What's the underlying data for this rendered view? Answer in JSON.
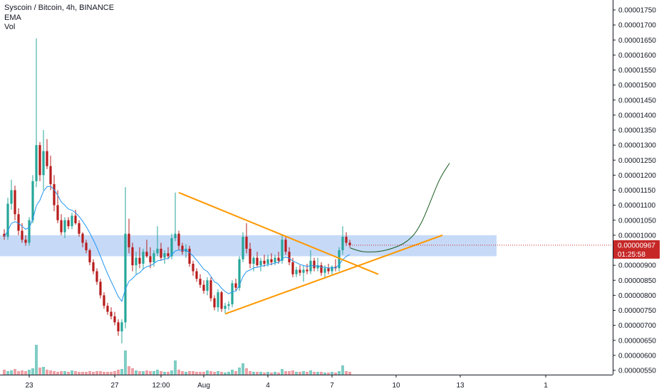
{
  "header": {
    "symbol_line": "Syscoin / Bitcoin, 4h, BINANCE",
    "indicator_1": "EMA",
    "indicator_2": "Vol"
  },
  "colors": {
    "up": "#26a69a",
    "down": "#b71c1c",
    "vol_up": "#7fcdc4",
    "vol_down": "#eda0a6",
    "ema": "#2196f3",
    "trendline": "#ff9800",
    "zone": "#b3cdf5",
    "projection": "#1b5e20",
    "price_label_bg": "#c62828"
  },
  "chart_data": {
    "type": "candlestick",
    "y_axis": {
      "ticks": [
        "0.00000550",
        "0.00000600",
        "0.00000650",
        "0.00000700",
        "0.00000750",
        "0.00000800",
        "0.00000850",
        "0.00000900",
        "0.00000950",
        "0.00001000",
        "0.00001050",
        "0.00001100",
        "0.00001150",
        "0.00001200",
        "0.00001250",
        "0.00001300",
        "0.00001350",
        "0.00001400",
        "0.00001450",
        "0.00001500",
        "0.00001550",
        "0.00001600",
        "0.00001650",
        "0.00001700",
        "0.00001750"
      ],
      "range": [
        5.2e-06,
        1.78e-05
      ]
    },
    "x_axis": {
      "ticks": [
        {
          "label": "23",
          "bar": 7
        },
        {
          "label": "27",
          "bar": 31
        },
        {
          "label": "12:00",
          "bar": 44
        },
        {
          "label": "Aug",
          "bar": 56
        },
        {
          "label": "4",
          "bar": 74
        },
        {
          "label": "7",
          "bar": 92
        },
        {
          "label": "10",
          "bar": 110
        },
        {
          "label": "13",
          "bar": 128
        },
        {
          "label": "1",
          "bar": 152
        }
      ]
    },
    "current_price": "0.00000967",
    "countdown": "01:25:58",
    "zone": {
      "low": 9.3e-06,
      "high": 1e-05
    },
    "trendlines": [
      {
        "name": "upper",
        "from": [
          49,
          1.142e-05
        ],
        "to": [
          105,
          8.7e-06
        ]
      },
      {
        "name": "lower",
        "from": [
          62,
          7.38e-06
        ],
        "to": [
          123,
          1e-05
        ]
      }
    ],
    "projection": [
      [
        97,
        9.58e-06
      ],
      [
        101,
        9.45e-06
      ],
      [
        107,
        9.5e-06
      ],
      [
        113,
        9.8e-06
      ],
      [
        117,
        1.04e-05
      ],
      [
        122,
        1.18e-05
      ],
      [
        125,
        1.24e-05
      ]
    ],
    "candles": [
      [
        1.005,
        1.02,
        0.985,
        0.995
      ],
      [
        0.995,
        1.125,
        0.985,
        1.105
      ],
      [
        1.105,
        1.185,
        1.085,
        1.15
      ],
      [
        1.15,
        1.165,
        1.05,
        1.07
      ],
      [
        1.07,
        1.09,
        1.0,
        1.015
      ],
      [
        1.015,
        1.04,
        0.975,
        0.985
      ],
      [
        0.985,
        1.0,
        0.965,
        0.975
      ],
      [
        0.975,
        1.06,
        0.965,
        1.05
      ],
      [
        1.05,
        1.2,
        1.04,
        1.18
      ],
      [
        1.18,
        1.655,
        1.16,
        1.3
      ],
      [
        1.3,
        1.31,
        1.18,
        1.2
      ],
      [
        1.2,
        1.35,
        1.15,
        1.28
      ],
      [
        1.28,
        1.32,
        1.22,
        1.23
      ],
      [
        1.23,
        1.265,
        1.15,
        1.17
      ],
      [
        1.17,
        1.2,
        1.08,
        1.1
      ],
      [
        1.1,
        1.15,
        1.04,
        1.05
      ],
      [
        1.05,
        1.07,
        1.0,
        1.01
      ],
      [
        1.01,
        1.06,
        0.99,
        1.05
      ],
      [
        1.05,
        1.06,
        1.02,
        1.03
      ],
      [
        1.03,
        1.075,
        1.02,
        1.065
      ],
      [
        1.065,
        1.085,
        1.035,
        1.04
      ],
      [
        1.04,
        1.05,
        0.995,
        1.005
      ],
      [
        1.005,
        1.01,
        0.96,
        0.975
      ],
      [
        0.975,
        0.985,
        0.94,
        0.95
      ],
      [
        0.95,
        0.955,
        0.9,
        0.91
      ],
      [
        0.91,
        0.92,
        0.87,
        0.88
      ],
      [
        0.88,
        0.89,
        0.835,
        0.845
      ],
      [
        0.845,
        0.855,
        0.79,
        0.8
      ],
      [
        0.8,
        0.81,
        0.755,
        0.765
      ],
      [
        0.765,
        0.775,
        0.735,
        0.745
      ],
      [
        0.745,
        0.76,
        0.72,
        0.73
      ],
      [
        0.73,
        0.745,
        0.7,
        0.71
      ],
      [
        0.71,
        0.72,
        0.665,
        0.68
      ],
      [
        0.68,
        0.72,
        0.64,
        0.71
      ],
      [
        0.71,
        1.16,
        0.69,
        1.005
      ],
      [
        1.005,
        1.055,
        0.94,
        0.96
      ],
      [
        0.96,
        0.975,
        0.88,
        0.9
      ],
      [
        0.9,
        0.945,
        0.87,
        0.925
      ],
      [
        0.925,
        0.96,
        0.89,
        0.905
      ],
      [
        0.905,
        0.955,
        0.885,
        0.945
      ],
      [
        0.945,
        0.985,
        0.925,
        0.93
      ],
      [
        0.93,
        0.96,
        0.89,
        0.91
      ],
      [
        0.91,
        0.95,
        0.895,
        0.94
      ],
      [
        0.94,
        1.03,
        0.93,
        0.955
      ],
      [
        0.955,
        0.975,
        0.915,
        0.925
      ],
      [
        0.925,
        0.95,
        0.905,
        0.94
      ],
      [
        0.94,
        0.96,
        0.92,
        0.93
      ],
      [
        0.93,
        1.005,
        0.92,
        0.99
      ],
      [
        0.99,
        1.142,
        0.98,
        1.005
      ],
      [
        1.005,
        1.015,
        0.95,
        0.965
      ],
      [
        0.965,
        0.975,
        0.935,
        0.945
      ],
      [
        0.945,
        0.97,
        0.925,
        0.955
      ],
      [
        0.955,
        0.965,
        0.895,
        0.905
      ],
      [
        0.905,
        0.915,
        0.865,
        0.88
      ],
      [
        0.88,
        0.89,
        0.845,
        0.855
      ],
      [
        0.855,
        0.87,
        0.825,
        0.835
      ],
      [
        0.835,
        0.85,
        0.805,
        0.815
      ],
      [
        0.815,
        0.86,
        0.8,
        0.85
      ],
      [
        0.85,
        0.86,
        0.78,
        0.79
      ],
      [
        0.79,
        0.8,
        0.75,
        0.76
      ],
      [
        0.76,
        0.82,
        0.745,
        0.81
      ],
      [
        0.81,
        0.815,
        0.745,
        0.755
      ],
      [
        0.755,
        0.775,
        0.74,
        0.765
      ],
      [
        0.765,
        0.78,
        0.75,
        0.77
      ],
      [
        0.77,
        0.85,
        0.76,
        0.84
      ],
      [
        0.84,
        0.855,
        0.815,
        0.825
      ],
      [
        0.825,
        0.93,
        0.815,
        0.92
      ],
      [
        0.92,
        1.01,
        0.91,
        0.995
      ],
      [
        0.995,
        1.04,
        0.94,
        0.955
      ],
      [
        0.955,
        0.975,
        0.89,
        0.905
      ],
      [
        0.905,
        0.93,
        0.88,
        0.925
      ],
      [
        0.925,
        0.945,
        0.895,
        0.9
      ],
      [
        0.9,
        0.925,
        0.88,
        0.915
      ],
      [
        0.915,
        0.935,
        0.895,
        0.905
      ],
      [
        0.905,
        0.935,
        0.895,
        0.92
      ],
      [
        0.92,
        0.94,
        0.9,
        0.91
      ],
      [
        0.91,
        0.935,
        0.9,
        0.925
      ],
      [
        0.925,
        0.945,
        0.905,
        0.915
      ],
      [
        0.915,
        1.0,
        0.905,
        0.985
      ],
      [
        0.985,
        0.995,
        0.935,
        0.945
      ],
      [
        0.945,
        0.96,
        0.9,
        0.91
      ],
      [
        0.91,
        0.925,
        0.86,
        0.87
      ],
      [
        0.87,
        0.895,
        0.86,
        0.885
      ],
      [
        0.885,
        0.9,
        0.865,
        0.875
      ],
      [
        0.875,
        0.9,
        0.845,
        0.885
      ],
      [
        0.885,
        0.905,
        0.87,
        0.88
      ],
      [
        0.88,
        0.95,
        0.87,
        0.915
      ],
      [
        0.915,
        0.925,
        0.88,
        0.89
      ],
      [
        0.89,
        0.925,
        0.88,
        0.9
      ],
      [
        0.9,
        0.91,
        0.865,
        0.875
      ],
      [
        0.875,
        0.9,
        0.86,
        0.89
      ],
      [
        0.89,
        0.905,
        0.87,
        0.88
      ],
      [
        0.88,
        0.9,
        0.87,
        0.895
      ],
      [
        0.895,
        0.92,
        0.88,
        0.89
      ],
      [
        0.89,
        0.96,
        0.88,
        0.95
      ],
      [
        0.95,
        1.03,
        0.935,
        0.995
      ],
      [
        0.995,
        1.01,
        0.965,
        0.975
      ],
      [
        0.975,
        0.985,
        0.96,
        0.967
      ]
    ],
    "volumes": [
      [
        0.07,
        0
      ],
      [
        0.05,
        1
      ],
      [
        0.06,
        1
      ],
      [
        0.08,
        0
      ],
      [
        0.05,
        0
      ],
      [
        0.06,
        0
      ],
      [
        0.05,
        0
      ],
      [
        0.07,
        1
      ],
      [
        0.09,
        1
      ],
      [
        0.42,
        1
      ],
      [
        0.1,
        0
      ],
      [
        0.11,
        1
      ],
      [
        0.07,
        0
      ],
      [
        0.06,
        0
      ],
      [
        0.05,
        0
      ],
      [
        0.04,
        0
      ],
      [
        0.05,
        0
      ],
      [
        0.05,
        1
      ],
      [
        0.04,
        0
      ],
      [
        0.06,
        1
      ],
      [
        0.05,
        0
      ],
      [
        0.04,
        0
      ],
      [
        0.04,
        0
      ],
      [
        0.04,
        0
      ],
      [
        0.05,
        0
      ],
      [
        0.04,
        0
      ],
      [
        0.05,
        0
      ],
      [
        0.05,
        0
      ],
      [
        0.04,
        0
      ],
      [
        0.04,
        0
      ],
      [
        0.04,
        0
      ],
      [
        0.05,
        0
      ],
      [
        0.07,
        0
      ],
      [
        0.08,
        1
      ],
      [
        0.34,
        1
      ],
      [
        0.12,
        0
      ],
      [
        0.09,
        0
      ],
      [
        0.06,
        1
      ],
      [
        0.05,
        0
      ],
      [
        0.05,
        1
      ],
      [
        0.06,
        0
      ],
      [
        0.05,
        0
      ],
      [
        0.05,
        1
      ],
      [
        0.07,
        1
      ],
      [
        0.05,
        0
      ],
      [
        0.04,
        1
      ],
      [
        0.04,
        0
      ],
      [
        0.06,
        1
      ],
      [
        0.2,
        1
      ],
      [
        0.07,
        0
      ],
      [
        0.05,
        0
      ],
      [
        0.04,
        1
      ],
      [
        0.05,
        0
      ],
      [
        0.05,
        0
      ],
      [
        0.04,
        0
      ],
      [
        0.04,
        0
      ],
      [
        0.04,
        0
      ],
      [
        0.06,
        1
      ],
      [
        0.05,
        0
      ],
      [
        0.04,
        0
      ],
      [
        0.05,
        1
      ],
      [
        0.04,
        0
      ],
      [
        0.03,
        1
      ],
      [
        0.04,
        1
      ],
      [
        0.07,
        1
      ],
      [
        0.05,
        0
      ],
      [
        0.1,
        1
      ],
      [
        0.16,
        1
      ],
      [
        0.09,
        0
      ],
      [
        0.05,
        0
      ],
      [
        0.04,
        1
      ],
      [
        0.04,
        0
      ],
      [
        0.04,
        1
      ],
      [
        0.03,
        0
      ],
      [
        0.04,
        1
      ],
      [
        0.03,
        0
      ],
      [
        0.04,
        1
      ],
      [
        0.03,
        0
      ],
      [
        0.08,
        1
      ],
      [
        0.05,
        0
      ],
      [
        0.05,
        0
      ],
      [
        0.06,
        0
      ],
      [
        0.04,
        1
      ],
      [
        0.04,
        0
      ],
      [
        0.05,
        1
      ],
      [
        0.04,
        0
      ],
      [
        0.06,
        1
      ],
      [
        0.04,
        0
      ],
      [
        0.04,
        1
      ],
      [
        0.04,
        0
      ],
      [
        0.03,
        1
      ],
      [
        0.03,
        0
      ],
      [
        0.04,
        1
      ],
      [
        0.03,
        0
      ],
      [
        0.05,
        1
      ],
      [
        0.13,
        1
      ],
      [
        0.05,
        0
      ],
      [
        0.04,
        0
      ]
    ]
  }
}
